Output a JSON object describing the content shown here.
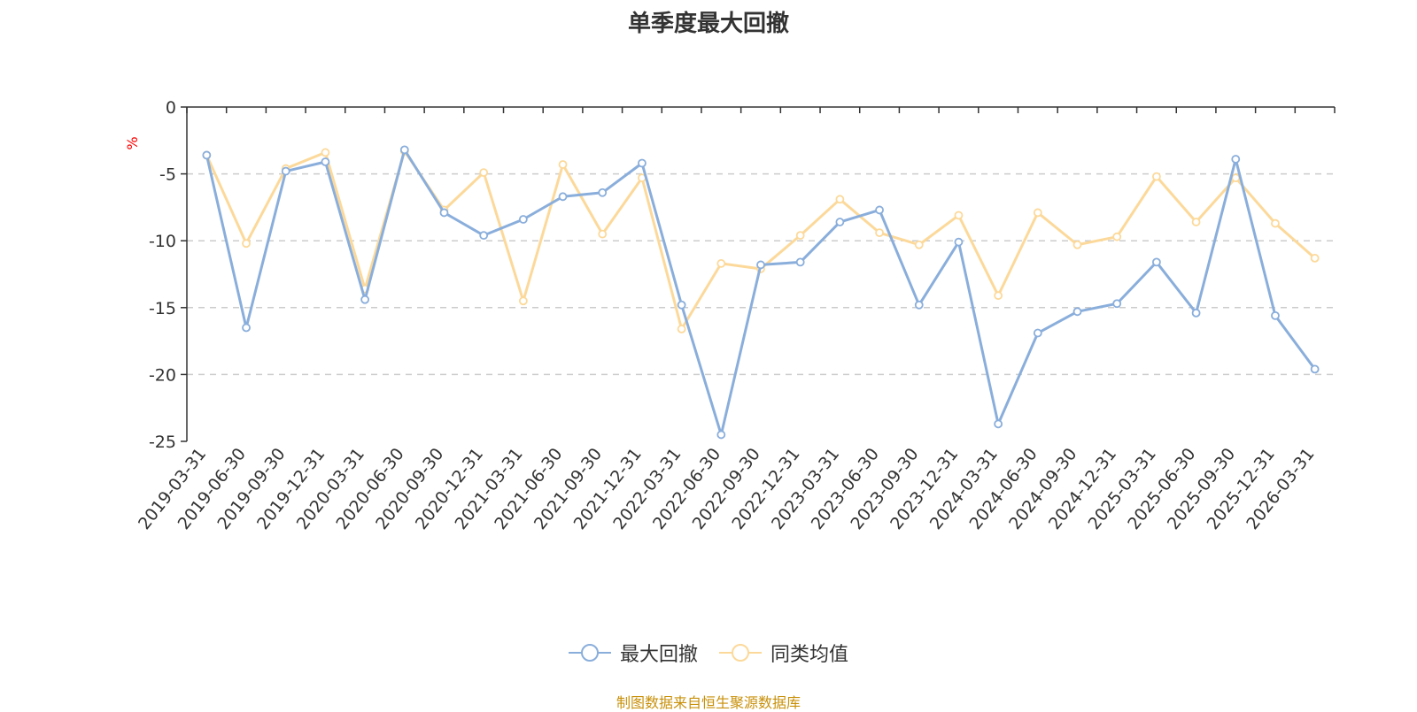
{
  "chart_data": {
    "type": "line",
    "title": "单季度最大回撤",
    "ylabel": "%",
    "xlabel": "",
    "ylim": [
      -25,
      0
    ],
    "yticks": [
      0,
      -5,
      -10,
      -15,
      -20,
      -25
    ],
    "grid": true,
    "legend_position": "bottom-center",
    "categories": [
      "2019-03-31",
      "2019-06-30",
      "2019-09-30",
      "2019-12-31",
      "2020-03-31",
      "2020-06-30",
      "2020-09-30",
      "2020-12-31",
      "2021-03-31",
      "2021-06-30",
      "2021-09-30",
      "2021-12-31",
      "2022-03-31",
      "2022-06-30",
      "2022-09-30",
      "2022-12-31",
      "2023-03-31",
      "2023-06-30",
      "2023-09-30",
      "2023-12-31",
      "2024-03-31",
      "2024-06-30",
      "2024-09-30",
      "2024-12-31",
      "2025-03-31",
      "2025-06-30",
      "2025-09-30",
      "2025-12-31",
      "2026-03-31"
    ],
    "series": [
      {
        "name": "最大回撤",
        "color": "#8aaedb",
        "values": [
          -3.6,
          -16.5,
          -4.8,
          -4.1,
          -14.4,
          -3.2,
          -7.9,
          -9.6,
          -8.4,
          -6.7,
          -6.4,
          -4.2,
          -14.8,
          -24.5,
          -11.8,
          -11.6,
          -8.6,
          -7.7,
          -14.8,
          -10.1,
          -23.7,
          -16.9,
          -15.3,
          -14.7,
          -11.6,
          -15.4,
          -3.9,
          -15.6,
          -19.6
        ]
      },
      {
        "name": "同类均值",
        "color": "#fcd99a",
        "values": [
          -3.6,
          -10.2,
          -4.6,
          -3.4,
          -13.6,
          -3.3,
          -7.7,
          -4.9,
          -14.5,
          -4.3,
          -9.5,
          -5.3,
          -16.6,
          -11.7,
          -12.1,
          -9.6,
          -6.9,
          -9.4,
          -10.3,
          -8.1,
          -14.1,
          -7.9,
          -10.3,
          -9.7,
          -5.2,
          -8.6,
          -5.3,
          -8.7,
          -11.3
        ]
      }
    ]
  },
  "source_note": "制图数据来自恒生聚源数据库"
}
